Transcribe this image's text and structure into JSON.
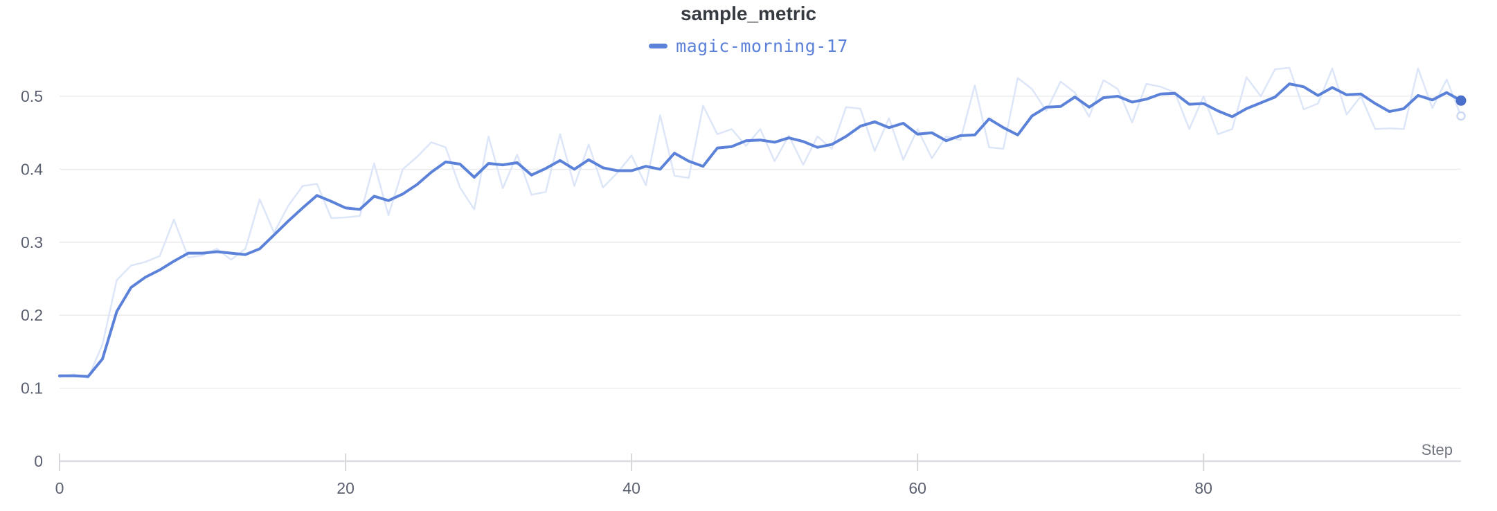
{
  "chart": {
    "title": "sample_metric",
    "legend": {
      "series_label": "magic-morning-17"
    },
    "x_axis": {
      "label": "Step",
      "ticks": [
        0,
        20,
        40,
        60,
        80
      ]
    },
    "y_axis": {
      "tick_labels": [
        "0",
        "0.1",
        "0.2",
        "0.3",
        "0.4",
        "0.5"
      ],
      "tick_values": [
        0,
        0.1,
        0.2,
        0.3,
        0.4,
        0.5
      ]
    },
    "colors": {
      "run_line": "#5b82d8",
      "raw_line": "#dde6f8",
      "end_dot": "#4a70cb",
      "raw_end_ring": "#ccd9f4",
      "grid": "#e9eaee",
      "axis": "#dcdde1",
      "tick": "#d6d7db",
      "tick_label": "#5a6070",
      "axis_title": "#70757f",
      "title_text": "#363a41"
    }
  },
  "chart_data": {
    "type": "line",
    "title": "sample_metric",
    "xlabel": "Step",
    "ylabel": "",
    "x_start": 0,
    "x_step": 1,
    "x_range": [
      0,
      98
    ],
    "ylim": [
      0,
      0.556
    ],
    "x_ticks": [
      0,
      20,
      40,
      60,
      80
    ],
    "y_ticks": [
      0,
      0.1,
      0.2,
      0.3,
      0.4,
      0.5
    ],
    "grid": "horizontal",
    "legend_position": "top",
    "legend": [
      "magic-morning-17"
    ],
    "series": [
      {
        "name": "magic-morning-17 (original)",
        "role": "raw",
        "color": "#dde6f8",
        "values": [
          0.115,
          0.119,
          0.114,
          0.16,
          0.248,
          0.268,
          0.273,
          0.281,
          0.331,
          0.279,
          0.282,
          0.291,
          0.276,
          0.291,
          0.359,
          0.313,
          0.35,
          0.377,
          0.38,
          0.333,
          0.334,
          0.336,
          0.408,
          0.337,
          0.4,
          0.417,
          0.437,
          0.43,
          0.375,
          0.345,
          0.445,
          0.374,
          0.42,
          0.365,
          0.369,
          0.448,
          0.377,
          0.434,
          0.375,
          0.395,
          0.419,
          0.378,
          0.474,
          0.391,
          0.388,
          0.487,
          0.448,
          0.455,
          0.432,
          0.455,
          0.411,
          0.446,
          0.406,
          0.445,
          0.428,
          0.485,
          0.483,
          0.425,
          0.47,
          0.413,
          0.455,
          0.415,
          0.445,
          0.44,
          0.515,
          0.43,
          0.428,
          0.525,
          0.51,
          0.48,
          0.52,
          0.505,
          0.472,
          0.522,
          0.51,
          0.464,
          0.517,
          0.513,
          0.505,
          0.455,
          0.5,
          0.448,
          0.455,
          0.526,
          0.5,
          0.537,
          0.539,
          0.482,
          0.49,
          0.538,
          0.475,
          0.5,
          0.455,
          0.456,
          0.455,
          0.538,
          0.484,
          0.523,
          0.473
        ]
      },
      {
        "name": "magic-morning-17",
        "role": "smoothed",
        "color": "#5b82d8",
        "values": [
          0.117,
          0.117,
          0.116,
          0.14,
          0.205,
          0.238,
          0.252,
          0.262,
          0.274,
          0.285,
          0.285,
          0.287,
          0.285,
          0.283,
          0.291,
          0.31,
          0.329,
          0.347,
          0.364,
          0.356,
          0.347,
          0.345,
          0.363,
          0.357,
          0.366,
          0.379,
          0.396,
          0.41,
          0.407,
          0.389,
          0.408,
          0.406,
          0.409,
          0.392,
          0.401,
          0.412,
          0.4,
          0.413,
          0.402,
          0.398,
          0.398,
          0.404,
          0.4,
          0.422,
          0.411,
          0.404,
          0.429,
          0.431,
          0.439,
          0.44,
          0.437,
          0.443,
          0.438,
          0.43,
          0.434,
          0.445,
          0.459,
          0.465,
          0.457,
          0.463,
          0.448,
          0.45,
          0.439,
          0.446,
          0.447,
          0.469,
          0.457,
          0.447,
          0.473,
          0.485,
          0.486,
          0.499,
          0.485,
          0.498,
          0.5,
          0.492,
          0.496,
          0.503,
          0.504,
          0.489,
          0.49,
          0.48,
          0.472,
          0.483,
          0.491,
          0.499,
          0.517,
          0.513,
          0.501,
          0.512,
          0.502,
          0.503,
          0.49,
          0.479,
          0.483,
          0.501,
          0.495,
          0.505,
          0.494
        ]
      }
    ]
  }
}
